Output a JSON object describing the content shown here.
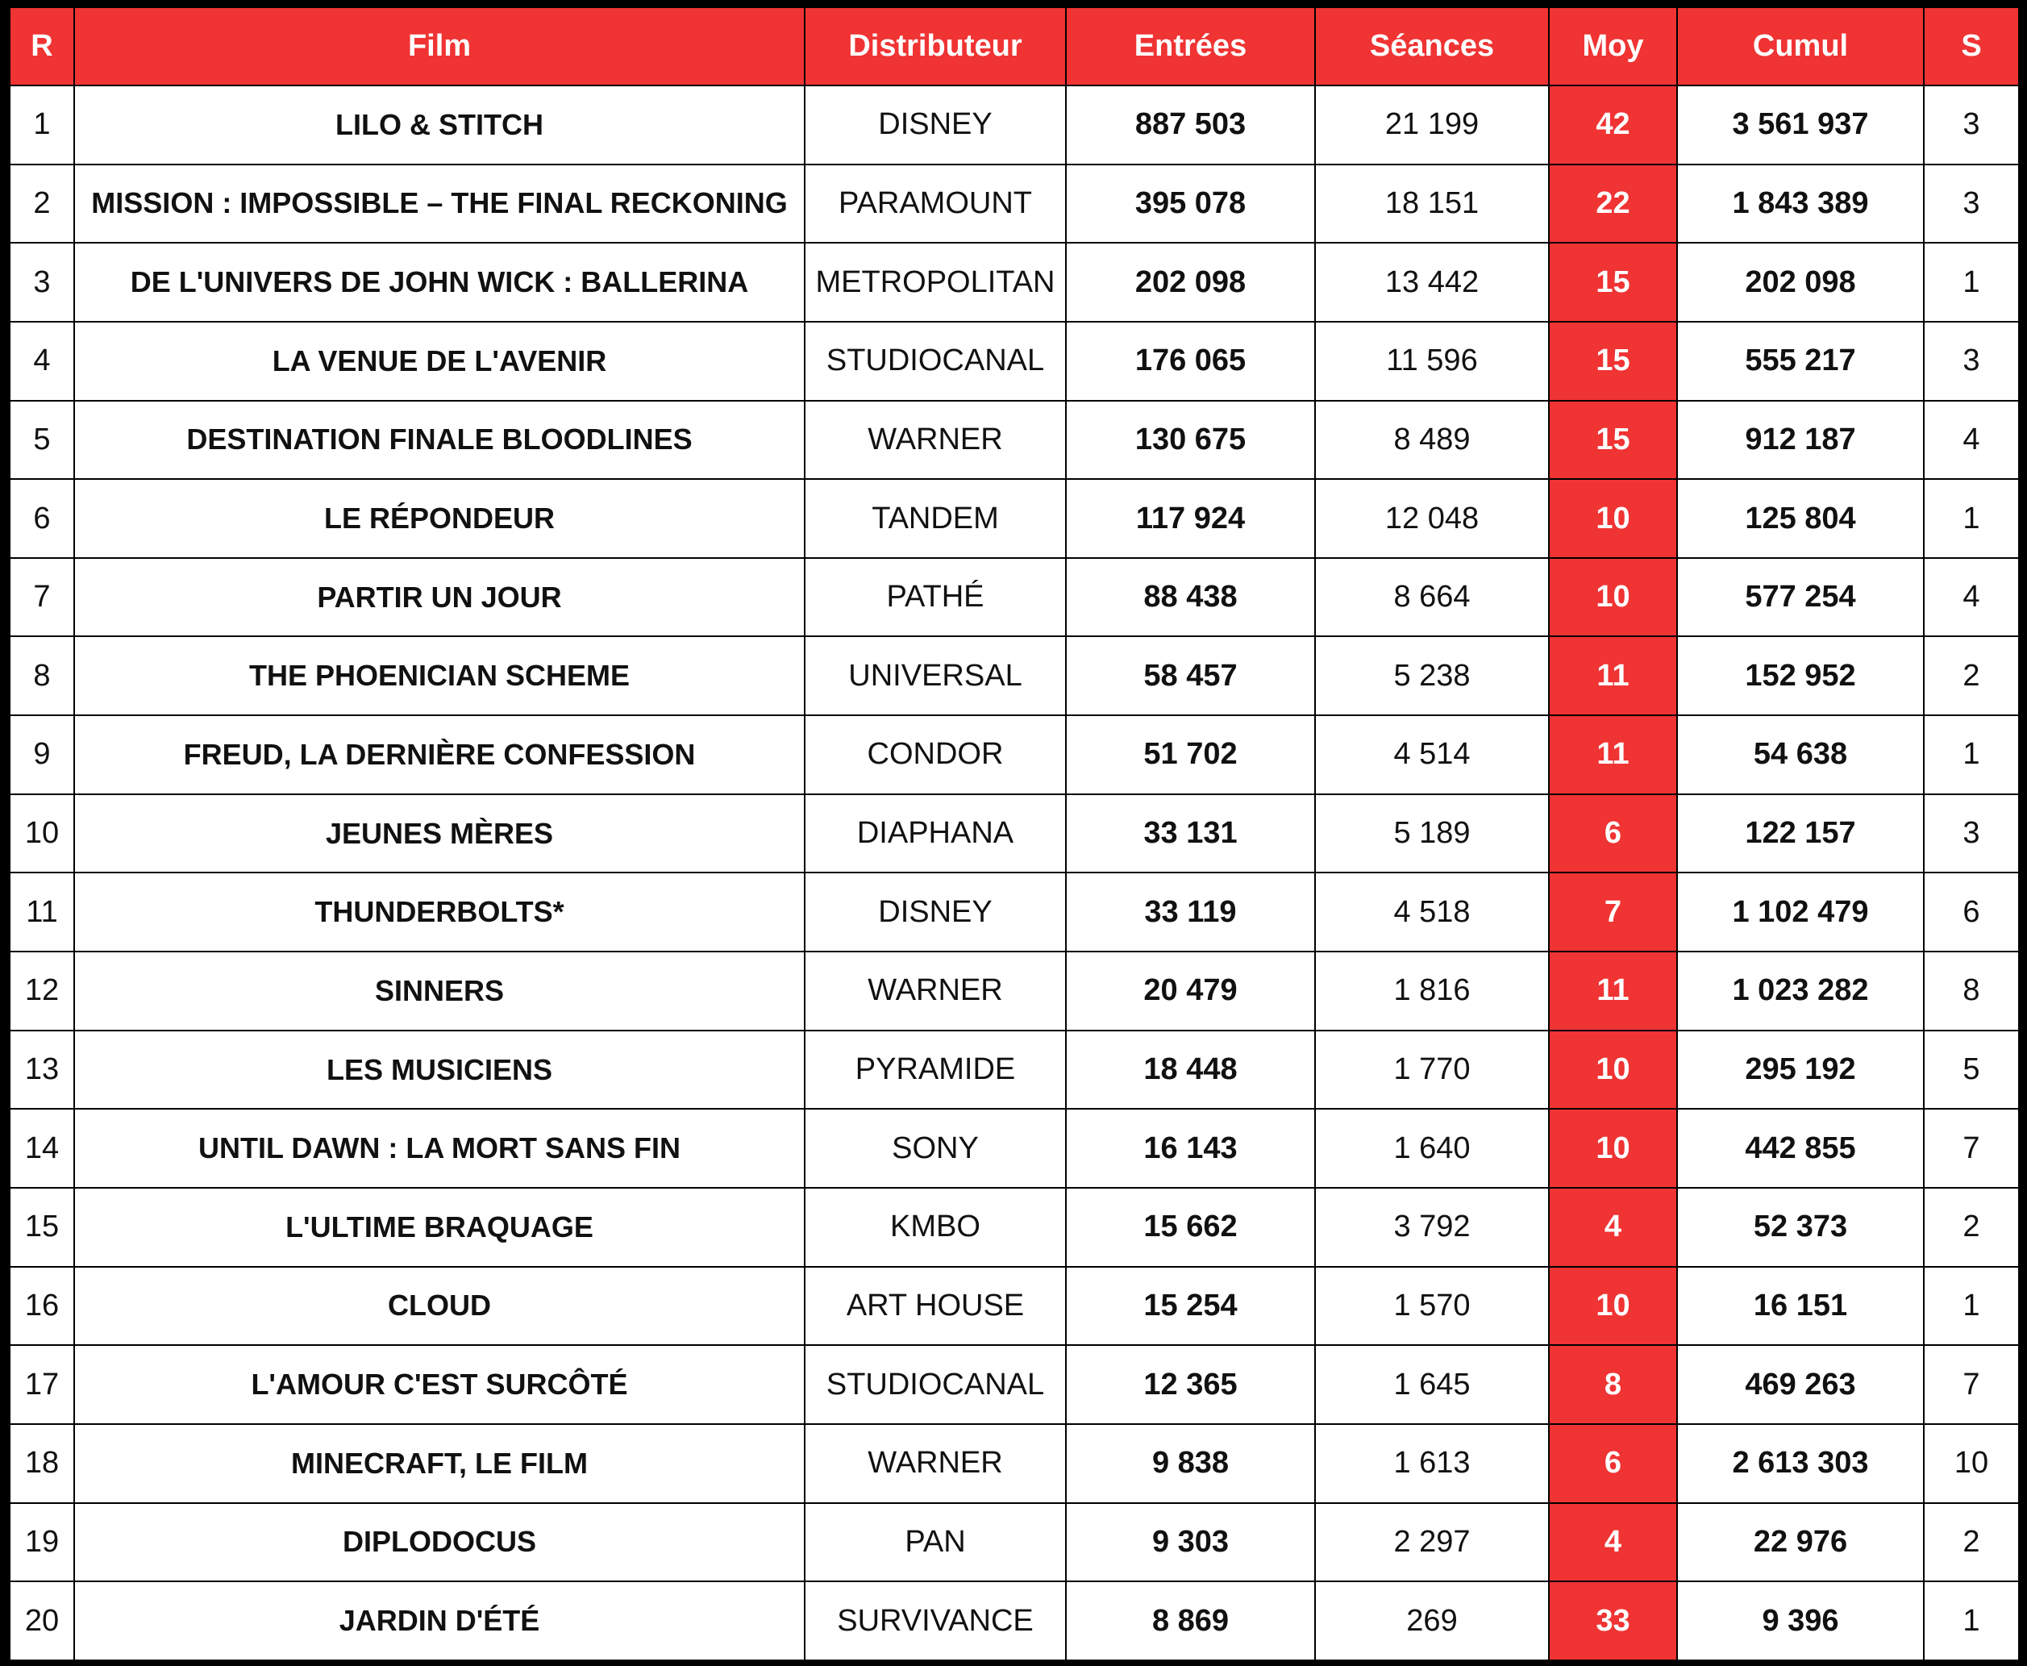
{
  "table": {
    "headers": [
      "R",
      "Film",
      "Distributeur",
      "Entrées",
      "Séances",
      "Moy",
      "Cumul",
      "S"
    ],
    "rows": [
      [
        "1",
        "LILO & STITCH",
        "DISNEY",
        "887 503",
        "21 199",
        "42",
        "3 561 937",
        "3"
      ],
      [
        "2",
        "MISSION : IMPOSSIBLE – THE FINAL RECKONING",
        "PARAMOUNT",
        "395 078",
        "18 151",
        "22",
        "1 843 389",
        "3"
      ],
      [
        "3",
        "DE L'UNIVERS DE JOHN WICK : BALLERINA",
        "METROPOLITAN",
        "202 098",
        "13 442",
        "15",
        "202 098",
        "1"
      ],
      [
        "4",
        "LA VENUE DE L'AVENIR",
        "STUDIOCANAL",
        "176 065",
        "11 596",
        "15",
        "555 217",
        "3"
      ],
      [
        "5",
        "DESTINATION FINALE BLOODLINES",
        "WARNER",
        "130 675",
        "8 489",
        "15",
        "912 187",
        "4"
      ],
      [
        "6",
        "LE RÉPONDEUR",
        "TANDEM",
        "117 924",
        "12 048",
        "10",
        "125 804",
        "1"
      ],
      [
        "7",
        "PARTIR UN JOUR",
        "PATHÉ",
        "88 438",
        "8 664",
        "10",
        "577 254",
        "4"
      ],
      [
        "8",
        "THE PHOENICIAN SCHEME",
        "UNIVERSAL",
        "58 457",
        "5 238",
        "11",
        "152 952",
        "2"
      ],
      [
        "9",
        "FREUD, LA DERNIÈRE CONFESSION",
        "CONDOR",
        "51 702",
        "4 514",
        "11",
        "54 638",
        "1"
      ],
      [
        "10",
        "JEUNES MÈRES",
        "DIAPHANA",
        "33 131",
        "5 189",
        "6",
        "122 157",
        "3"
      ],
      [
        "11",
        "THUNDERBOLTS*",
        "DISNEY",
        "33 119",
        "4 518",
        "7",
        "1 102 479",
        "6"
      ],
      [
        "12",
        "SINNERS",
        "WARNER",
        "20 479",
        "1 816",
        "11",
        "1 023 282",
        "8"
      ],
      [
        "13",
        "LES MUSICIENS",
        "PYRAMIDE",
        "18 448",
        "1 770",
        "10",
        "295 192",
        "5"
      ],
      [
        "14",
        "UNTIL DAWN : LA MORT SANS FIN",
        "SONY",
        "16 143",
        "1 640",
        "10",
        "442 855",
        "7"
      ],
      [
        "15",
        "L'ULTIME BRAQUAGE",
        "KMBO",
        "15 662",
        "3 792",
        "4",
        "52 373",
        "2"
      ],
      [
        "16",
        "CLOUD",
        "ART HOUSE",
        "15 254",
        "1 570",
        "10",
        "16 151",
        "1"
      ],
      [
        "17",
        "L'AMOUR C'EST SURCÔTÉ",
        "STUDIOCANAL",
        "12 365",
        "1 645",
        "8",
        "469 263",
        "7"
      ],
      [
        "18",
        "MINECRAFT, LE FILM",
        "WARNER",
        "9 838",
        "1 613",
        "6",
        "2 613 303",
        "10"
      ],
      [
        "19",
        "DIPLODOCUS",
        "PAN",
        "9 303",
        "2 297",
        "4",
        "22 976",
        "2"
      ],
      [
        "20",
        "JARDIN D'ÉTÉ",
        "SURVIVANCE",
        "8 869",
        "269",
        "33",
        "9 396",
        "1"
      ]
    ]
  }
}
